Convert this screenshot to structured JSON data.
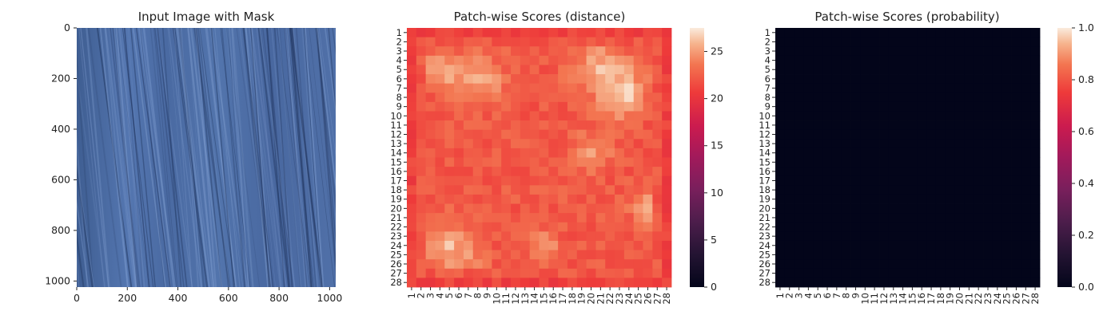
{
  "chart_data": [
    {
      "type": "image",
      "title": "Input Image with Mask",
      "xlim": [
        0,
        1024
      ],
      "ylim": [
        1024,
        0
      ],
      "xticks": [
        0,
        200,
        400,
        600,
        800,
        1000
      ],
      "yticks": [
        0,
        200,
        400,
        600,
        800,
        1000
      ],
      "xtick_labels": [
        "0",
        "200",
        "400",
        "600",
        "800",
        "1000"
      ],
      "ytick_labels": [
        "0",
        "200",
        "400",
        "600",
        "800",
        "1000"
      ],
      "content": "blue wood-grain texture with diagonal streaks",
      "base_color": "#4f6fa6"
    },
    {
      "type": "heatmap",
      "title": "Patch-wise Scores (distance)",
      "rows": 28,
      "cols": 28,
      "row_labels": [
        "1",
        "2",
        "3",
        "4",
        "5",
        "6",
        "7",
        "8",
        "9",
        "10",
        "11",
        "12",
        "13",
        "14",
        "15",
        "16",
        "17",
        "18",
        "19",
        "20",
        "21",
        "22",
        "23",
        "24",
        "25",
        "26",
        "27",
        "28"
      ],
      "col_labels": [
        "1",
        "2",
        "3",
        "4",
        "5",
        "6",
        "7",
        "8",
        "9",
        "10",
        "11",
        "12",
        "13",
        "14",
        "15",
        "16",
        "17",
        "18",
        "19",
        "20",
        "21",
        "22",
        "23",
        "24",
        "25",
        "26",
        "27",
        "28"
      ],
      "colorbar": {
        "min": 0,
        "max": 27.5,
        "ticks": [
          0,
          5,
          10,
          15,
          20,
          25
        ],
        "tick_labels": [
          "0",
          "5",
          "10",
          "15",
          "20",
          "25"
        ],
        "colormap": "rocket"
      },
      "value_range": [
        19,
        27
      ],
      "pattern": "border rows/cols ~20-22, interior ~22-27 with brighter blobs"
    },
    {
      "type": "heatmap",
      "title": "Patch-wise Scores (probability)",
      "rows": 28,
      "cols": 28,
      "row_labels": [
        "1",
        "2",
        "3",
        "4",
        "5",
        "6",
        "7",
        "8",
        "9",
        "10",
        "11",
        "12",
        "13",
        "14",
        "15",
        "16",
        "17",
        "18",
        "19",
        "20",
        "21",
        "22",
        "23",
        "24",
        "25",
        "26",
        "27",
        "28"
      ],
      "col_labels": [
        "1",
        "2",
        "3",
        "4",
        "5",
        "6",
        "7",
        "8",
        "9",
        "10",
        "11",
        "12",
        "13",
        "14",
        "15",
        "16",
        "17",
        "18",
        "19",
        "20",
        "21",
        "22",
        "23",
        "24",
        "25",
        "26",
        "27",
        "28"
      ],
      "colorbar": {
        "min": 0,
        "max": 1,
        "ticks": [
          0,
          0.2,
          0.4,
          0.6,
          0.8,
          1.0
        ],
        "tick_labels": [
          "0.0",
          "0.2",
          "0.4",
          "0.6",
          "0.8",
          "1.0"
        ],
        "colormap": "rocket"
      },
      "uniform_value": 0.0
    }
  ]
}
